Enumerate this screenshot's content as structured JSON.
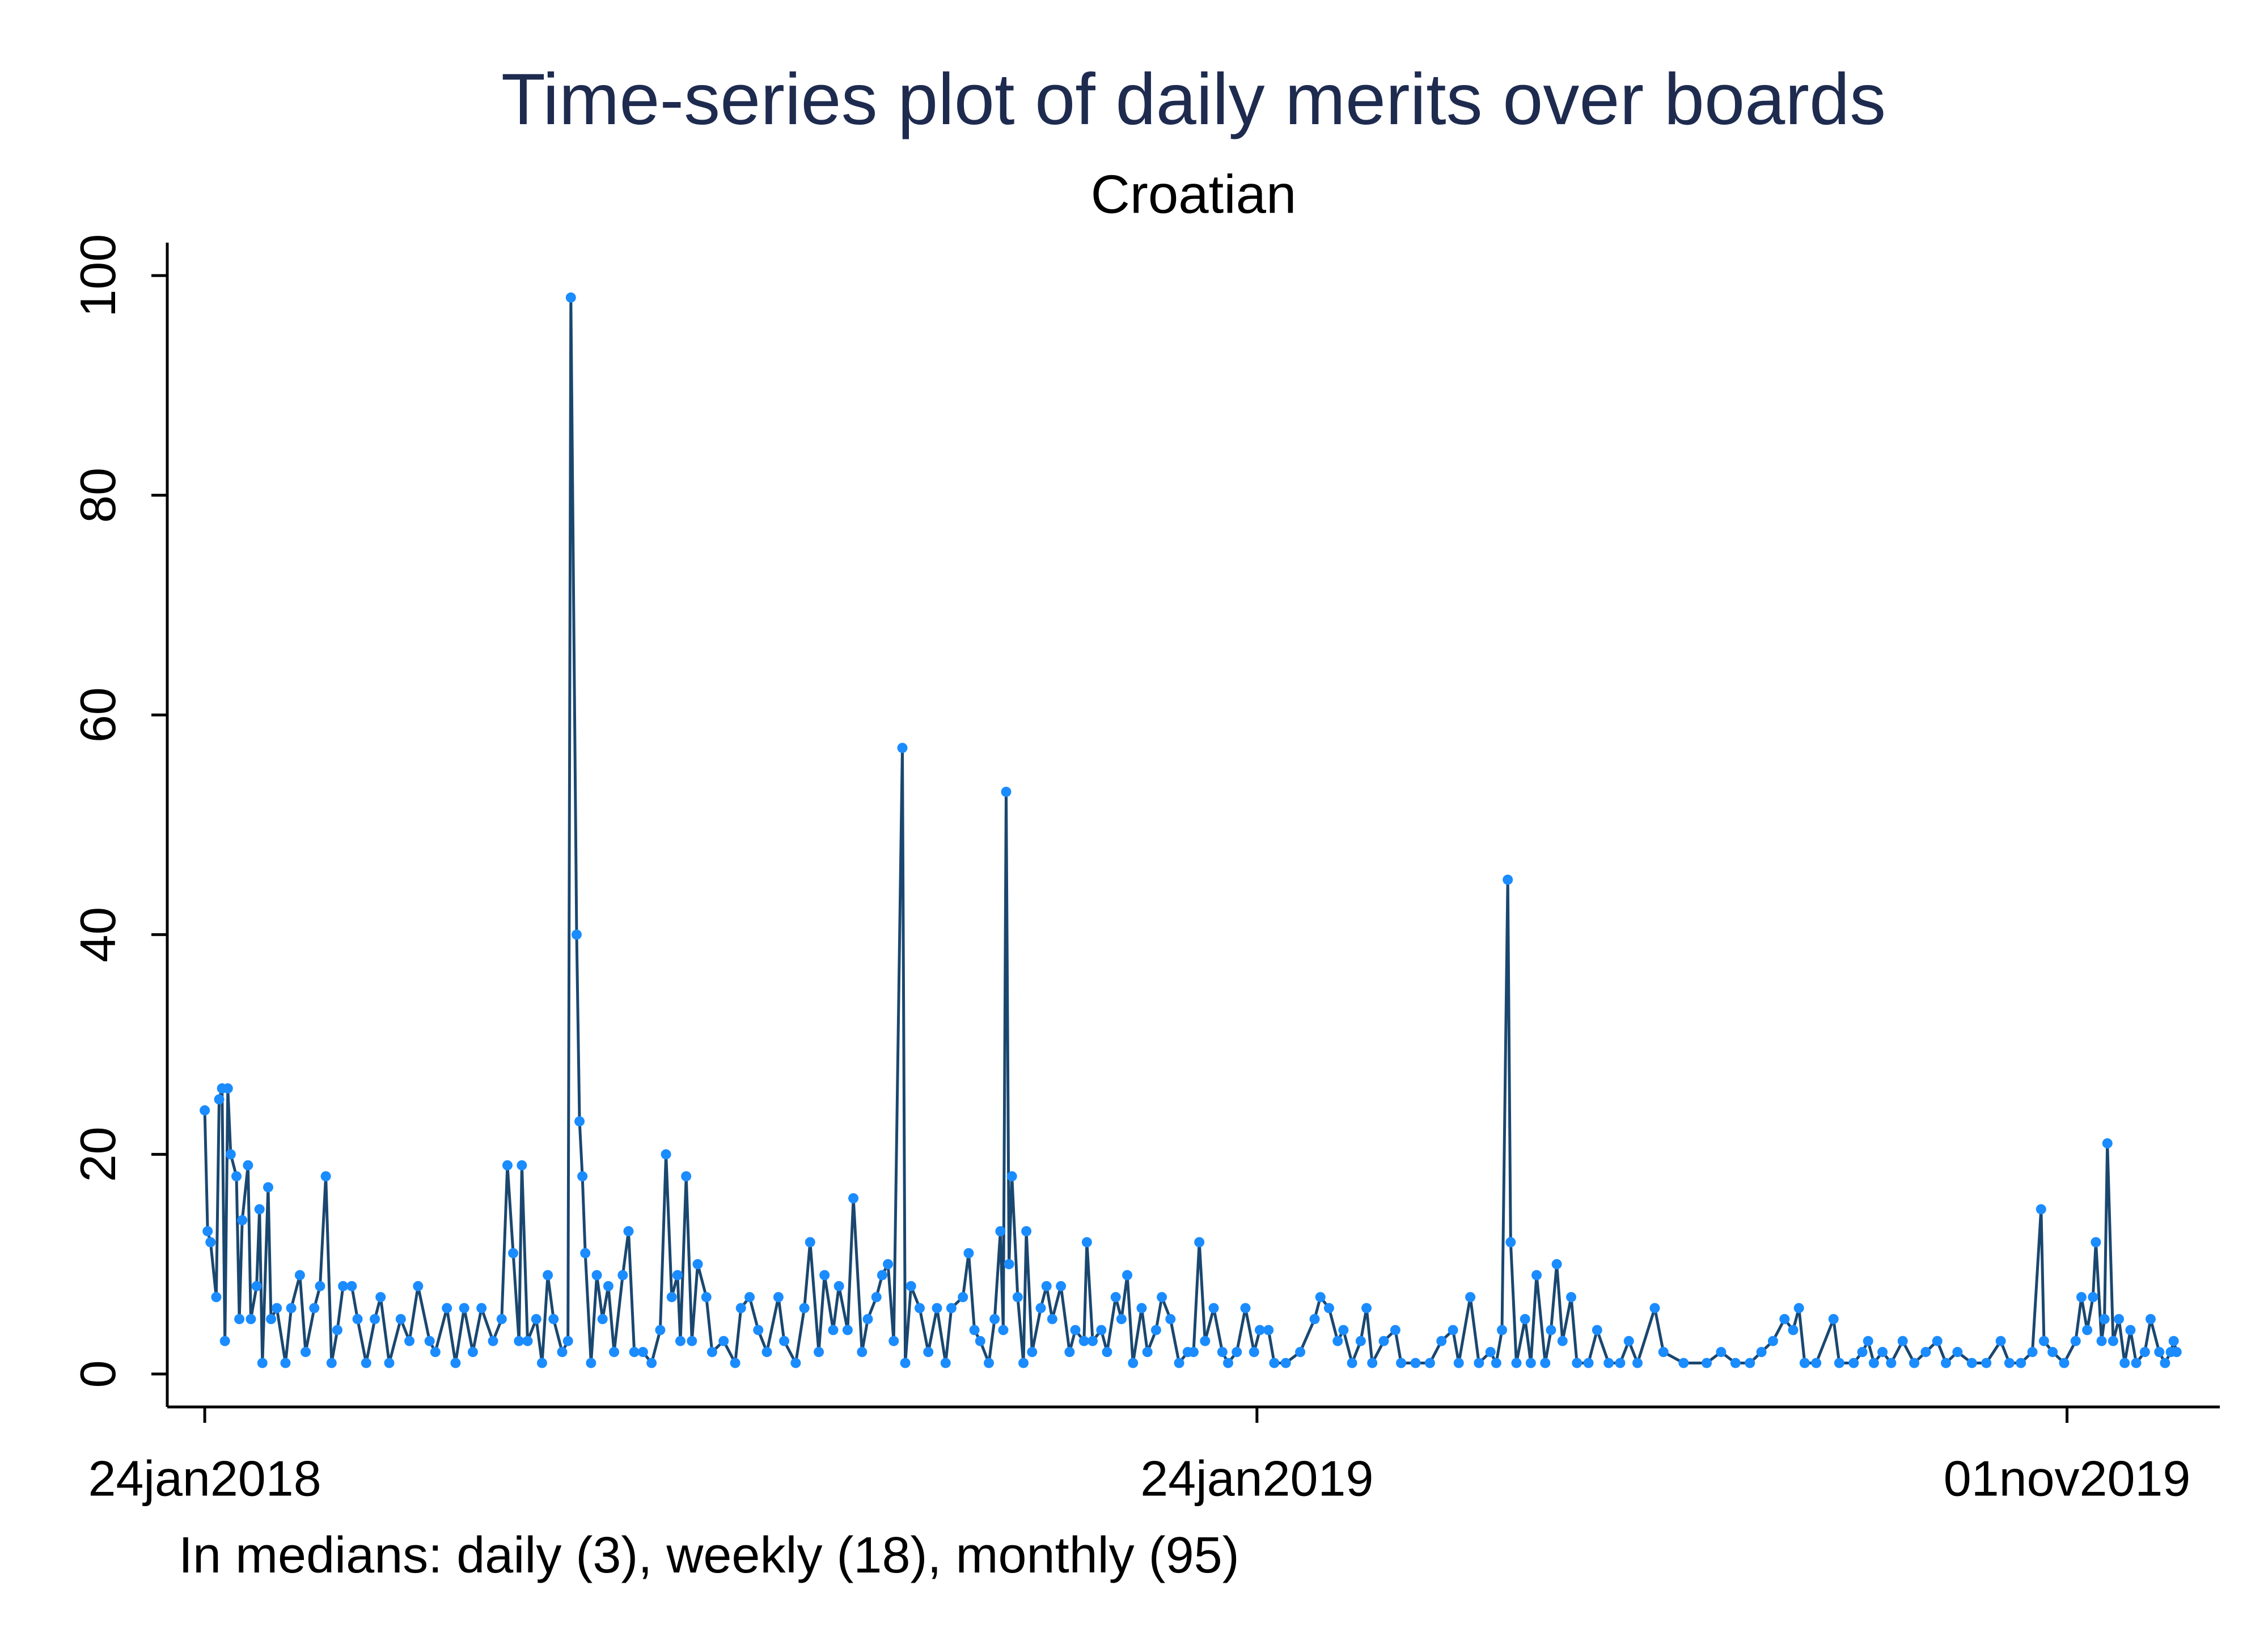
{
  "chart_data": {
    "type": "line",
    "title": "Time-series plot of daily merits over boards",
    "subtitle": "Croatian",
    "note": "In medians: daily (3), weekly (18), monthly (95)",
    "line_color": "#1a476f",
    "marker_color": "#1a8cff",
    "xlim": [
      "2018-01-11",
      "2019-12-24"
    ],
    "xticks": [
      {
        "value": "2018-01-24",
        "label": "24jan2018"
      },
      {
        "value": "2019-01-24",
        "label": "24jan2019"
      },
      {
        "value": "2019-11-01",
        "label": "01nov2019"
      }
    ],
    "ylim": [
      -3,
      103
    ],
    "yticks": [
      0,
      20,
      40,
      60,
      80,
      100
    ],
    "x": [
      "2018-01-24",
      "2018-01-25",
      "2018-01-26",
      "2018-01-28",
      "2018-01-29",
      "2018-01-30",
      "2018-01-31",
      "2018-02-01",
      "2018-02-02",
      "2018-02-04",
      "2018-02-05",
      "2018-02-06",
      "2018-02-08",
      "2018-02-09",
      "2018-02-11",
      "2018-02-12",
      "2018-02-13",
      "2018-02-15",
      "2018-02-16",
      "2018-02-18",
      "2018-02-21",
      "2018-02-23",
      "2018-02-26",
      "2018-02-28",
      "2018-03-03",
      "2018-03-05",
      "2018-03-07",
      "2018-03-09",
      "2018-03-11",
      "2018-03-13",
      "2018-03-16",
      "2018-03-18",
      "2018-03-21",
      "2018-03-24",
      "2018-03-26",
      "2018-03-29",
      "2018-04-02",
      "2018-04-05",
      "2018-04-08",
      "2018-04-12",
      "2018-04-14",
      "2018-04-18",
      "2018-04-21",
      "2018-04-24",
      "2018-04-27",
      "2018-04-30",
      "2018-05-04",
      "2018-05-07",
      "2018-05-09",
      "2018-05-11",
      "2018-05-13",
      "2018-05-14",
      "2018-05-16",
      "2018-05-19",
      "2018-05-21",
      "2018-05-23",
      "2018-05-25",
      "2018-05-28",
      "2018-05-30",
      "2018-05-31",
      "2018-06-02",
      "2018-06-03",
      "2018-06-04",
      "2018-06-05",
      "2018-06-07",
      "2018-06-09",
      "2018-06-11",
      "2018-06-13",
      "2018-06-15",
      "2018-06-18",
      "2018-06-20",
      "2018-06-22",
      "2018-06-25",
      "2018-06-28",
      "2018-07-01",
      "2018-07-03",
      "2018-07-05",
      "2018-07-07",
      "2018-07-08",
      "2018-07-10",
      "2018-07-12",
      "2018-07-14",
      "2018-07-17",
      "2018-07-19",
      "2018-07-23",
      "2018-07-27",
      "2018-07-29",
      "2018-08-01",
      "2018-08-04",
      "2018-08-07",
      "2018-08-11",
      "2018-08-13",
      "2018-08-17",
      "2018-08-20",
      "2018-08-22",
      "2018-08-25",
      "2018-08-27",
      "2018-08-30",
      "2018-09-01",
      "2018-09-04",
      "2018-09-06",
      "2018-09-09",
      "2018-09-11",
      "2018-09-14",
      "2018-09-16",
      "2018-09-18",
      "2018-09-20",
      "2018-09-23",
      "2018-09-24",
      "2018-09-26",
      "2018-09-29",
      "2018-10-02",
      "2018-10-05",
      "2018-10-08",
      "2018-10-10",
      "2018-10-14",
      "2018-10-16",
      "2018-10-18",
      "2018-10-20",
      "2018-10-23",
      "2018-10-25",
      "2018-10-27",
      "2018-10-28",
      "2018-10-29",
      "2018-10-30",
      "2018-10-31",
      "2018-11-02",
      "2018-11-04",
      "2018-11-05",
      "2018-11-07",
      "2018-11-10",
      "2018-11-12",
      "2018-11-14",
      "2018-11-17",
      "2018-11-20",
      "2018-11-22",
      "2018-11-25",
      "2018-11-26",
      "2018-11-28",
      "2018-12-01",
      "2018-12-03",
      "2018-12-06",
      "2018-12-08",
      "2018-12-10",
      "2018-12-12",
      "2018-12-15",
      "2018-12-17",
      "2018-12-20",
      "2018-12-22",
      "2018-12-25",
      "2018-12-28",
      "2018-12-31",
      "2019-01-02",
      "2019-01-04",
      "2019-01-06",
      "2019-01-09",
      "2019-01-12",
      "2019-01-14",
      "2019-01-17",
      "2019-01-20",
      "2019-01-23",
      "2019-01-25",
      "2019-01-28",
      "2019-01-30",
      "2019-02-03",
      "2019-02-08",
      "2019-02-13",
      "2019-02-15",
      "2019-02-18",
      "2019-02-21",
      "2019-02-23",
      "2019-02-26",
      "2019-03-01",
      "2019-03-03",
      "2019-03-05",
      "2019-03-09",
      "2019-03-13",
      "2019-03-15",
      "2019-03-20",
      "2019-03-25",
      "2019-03-29",
      "2019-04-02",
      "2019-04-04",
      "2019-04-08",
      "2019-04-11",
      "2019-04-15",
      "2019-04-17",
      "2019-04-19",
      "2019-04-21",
      "2019-04-22",
      "2019-04-24",
      "2019-04-27",
      "2019-04-29",
      "2019-05-01",
      "2019-05-04",
      "2019-05-06",
      "2019-05-08",
      "2019-05-10",
      "2019-05-13",
      "2019-05-15",
      "2019-05-19",
      "2019-05-22",
      "2019-05-26",
      "2019-05-30",
      "2019-06-02",
      "2019-06-05",
      "2019-06-11",
      "2019-06-14",
      "2019-06-21",
      "2019-06-29",
      "2019-07-04",
      "2019-07-09",
      "2019-07-14",
      "2019-07-18",
      "2019-07-22",
      "2019-07-26",
      "2019-07-29",
      "2019-07-31",
      "2019-08-02",
      "2019-08-06",
      "2019-08-12",
      "2019-08-14",
      "2019-08-19",
      "2019-08-22",
      "2019-08-24",
      "2019-08-26",
      "2019-08-29",
      "2019-09-01",
      "2019-09-05",
      "2019-09-09",
      "2019-09-13",
      "2019-09-17",
      "2019-09-20",
      "2019-09-24",
      "2019-09-29",
      "2019-10-04",
      "2019-10-09",
      "2019-10-12",
      "2019-10-16",
      "2019-10-20",
      "2019-10-23",
      "2019-10-24",
      "2019-10-27",
      "2019-10-31",
      "2019-11-04",
      "2019-11-06",
      "2019-11-08",
      "2019-11-10",
      "2019-11-11",
      "2019-11-13",
      "2019-11-14",
      "2019-11-15",
      "2019-11-17",
      "2019-11-19",
      "2019-11-21",
      "2019-11-23",
      "2019-11-25",
      "2019-11-28",
      "2019-11-30",
      "2019-12-03",
      "2019-12-05",
      "2019-12-07",
      "2019-12-08",
      "2019-12-09"
    ],
    "values": [
      24,
      13,
      12,
      7,
      25,
      26,
      3,
      26,
      20,
      18,
      5,
      14,
      19,
      5,
      8,
      15,
      1,
      17,
      5,
      6,
      1,
      6,
      9,
      2,
      6,
      8,
      18,
      1,
      4,
      8,
      8,
      5,
      1,
      5,
      7,
      1,
      5,
      3,
      8,
      3,
      2,
      6,
      1,
      6,
      2,
      6,
      3,
      5,
      19,
      11,
      3,
      19,
      3,
      5,
      1,
      9,
      5,
      2,
      3,
      98,
      40,
      23,
      18,
      11,
      1,
      9,
      5,
      8,
      2,
      9,
      13,
      2,
      2,
      1,
      4,
      20,
      7,
      9,
      3,
      18,
      3,
      10,
      7,
      2,
      3,
      1,
      6,
      7,
      4,
      2,
      7,
      3,
      1,
      6,
      12,
      2,
      9,
      4,
      8,
      4,
      16,
      2,
      5,
      7,
      9,
      10,
      3,
      57,
      1,
      8,
      6,
      2,
      6,
      1,
      6,
      7,
      11,
      4,
      3,
      1,
      5,
      13,
      4,
      53,
      10,
      18,
      7,
      1,
      13,
      2,
      6,
      8,
      5,
      8,
      2,
      4,
      3,
      12,
      3,
      4,
      2,
      7,
      5,
      9,
      1,
      6,
      2,
      4,
      7,
      5,
      1,
      2,
      2,
      12,
      3,
      6,
      2,
      1,
      2,
      6,
      2,
      4,
      4,
      1,
      1,
      2,
      5,
      7,
      6,
      3,
      4,
      1,
      3,
      6,
      1,
      3,
      4,
      1,
      1,
      1,
      3,
      4,
      1,
      7,
      1,
      2,
      1,
      4,
      45,
      12,
      1,
      5,
      1,
      9,
      1,
      4,
      10,
      3,
      7,
      1,
      1,
      4,
      1,
      1,
      3,
      1,
      6,
      2,
      1,
      1,
      2,
      1,
      1,
      2,
      3,
      5,
      4,
      6,
      1,
      1,
      5,
      1,
      1,
      2,
      3,
      1,
      2,
      1,
      3,
      1,
      2,
      3,
      1,
      2,
      1,
      1,
      3,
      1,
      1,
      2,
      15,
      3,
      2,
      1,
      3,
      7,
      4,
      7,
      12,
      3,
      5,
      21,
      3,
      5,
      1,
      4,
      1,
      2,
      5,
      2,
      1,
      2,
      3,
      2
    ]
  }
}
